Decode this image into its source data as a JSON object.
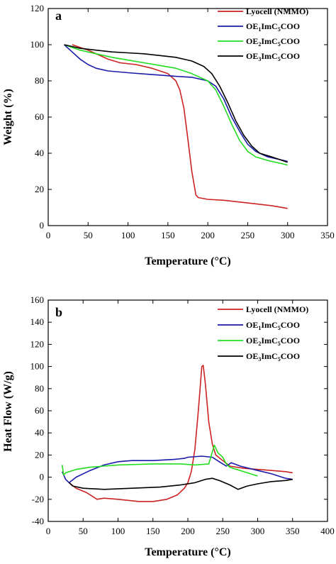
{
  "colors": {
    "lyocell": "#cc2222",
    "oe1": "#1a1aaa",
    "oe2": "#22dd22",
    "oe3": "#000000"
  },
  "chart_data": [
    {
      "type": "line",
      "panel_label": "a",
      "xlabel": "Temperature (°C)",
      "ylabel": "Weight (%)",
      "xlim": [
        0,
        350
      ],
      "ylim": [
        0,
        120
      ],
      "xticks": [
        0,
        50,
        100,
        150,
        200,
        250,
        300,
        350
      ],
      "yticks": [
        0,
        20,
        40,
        60,
        80,
        100,
        120
      ],
      "legend_position": "top-right",
      "series": [
        {
          "name": "Lyocell (NMMO)",
          "color_key": "lyocell",
          "points": [
            [
              30,
              100
            ],
            [
              50,
              97
            ],
            [
              75,
              92
            ],
            [
              90,
              90
            ],
            [
              110,
              89
            ],
            [
              130,
              87
            ],
            [
              150,
              84
            ],
            [
              160,
              80
            ],
            [
              165,
              75
            ],
            [
              170,
              65
            ],
            [
              175,
              48
            ],
            [
              180,
              30
            ],
            [
              185,
              17
            ],
            [
              188,
              15.5
            ],
            [
              200,
              14.5
            ],
            [
              220,
              14
            ],
            [
              250,
              12.5
            ],
            [
              280,
              11
            ],
            [
              300,
              9.5
            ]
          ]
        },
        {
          "name": "OE1ImC5COO",
          "sub": "1",
          "color_key": "oe1",
          "points": [
            [
              20,
              100
            ],
            [
              30,
              96
            ],
            [
              40,
              92
            ],
            [
              50,
              89
            ],
            [
              60,
              87
            ],
            [
              75,
              85.5
            ],
            [
              100,
              84.5
            ],
            [
              130,
              83.5
            ],
            [
              160,
              82.5
            ],
            [
              180,
              82
            ],
            [
              200,
              80
            ],
            [
              210,
              77
            ],
            [
              220,
              70
            ],
            [
              230,
              60
            ],
            [
              240,
              52
            ],
            [
              250,
              45
            ],
            [
              260,
              41
            ],
            [
              275,
              38
            ],
            [
              290,
              36.5
            ],
            [
              300,
              35.5
            ]
          ]
        },
        {
          "name": "OE2ImC5COO",
          "sub": "2",
          "color_key": "oe2",
          "points": [
            [
              20,
              100
            ],
            [
              40,
              97
            ],
            [
              60,
              95
            ],
            [
              80,
              93
            ],
            [
              100,
              91.5
            ],
            [
              120,
              90
            ],
            [
              140,
              88.5
            ],
            [
              160,
              87
            ],
            [
              180,
              84
            ],
            [
              200,
              80
            ],
            [
              210,
              75
            ],
            [
              220,
              66
            ],
            [
              230,
              56
            ],
            [
              240,
              47
            ],
            [
              250,
              41
            ],
            [
              260,
              38
            ],
            [
              275,
              36
            ],
            [
              290,
              34.5
            ],
            [
              300,
              33.5
            ]
          ]
        },
        {
          "name": "OE3ImC5COO",
          "sub": "3",
          "color_key": "oe3",
          "points": [
            [
              20,
              100
            ],
            [
              40,
              98
            ],
            [
              60,
              97
            ],
            [
              80,
              96
            ],
            [
              100,
              95.5
            ],
            [
              120,
              95
            ],
            [
              140,
              94
            ],
            [
              160,
              93
            ],
            [
              180,
              91
            ],
            [
              195,
              88
            ],
            [
              205,
              84
            ],
            [
              215,
              77
            ],
            [
              225,
              68
            ],
            [
              235,
              58
            ],
            [
              245,
              50
            ],
            [
              255,
              44
            ],
            [
              265,
              40
            ],
            [
              280,
              38
            ],
            [
              290,
              36.5
            ],
            [
              300,
              35
            ]
          ]
        }
      ]
    },
    {
      "type": "line",
      "panel_label": "b",
      "xlabel": "Temperature (°C)",
      "ylabel": "Heat Flow (W/g)",
      "xlim": [
        0,
        400
      ],
      "ylim": [
        -40,
        160
      ],
      "xticks": [
        0,
        50,
        100,
        150,
        200,
        250,
        300,
        350,
        400
      ],
      "yticks": [
        -40,
        -20,
        0,
        20,
        40,
        60,
        80,
        100,
        120,
        140,
        160
      ],
      "legend_position": "top-right",
      "series": [
        {
          "name": "Lyocell (NMMO)",
          "color_key": "lyocell",
          "points": [
            [
              30,
              -5
            ],
            [
              40,
              -10
            ],
            [
              55,
              -14
            ],
            [
              70,
              -20
            ],
            [
              80,
              -19
            ],
            [
              100,
              -20
            ],
            [
              130,
              -22
            ],
            [
              150,
              -22
            ],
            [
              170,
              -20
            ],
            [
              185,
              -16
            ],
            [
              195,
              -10
            ],
            [
              200,
              -5
            ],
            [
              205,
              5
            ],
            [
              210,
              25
            ],
            [
              215,
              60
            ],
            [
              220,
              100
            ],
            [
              222,
              101
            ],
            [
              225,
              85
            ],
            [
              230,
              50
            ],
            [
              235,
              30
            ],
            [
              240,
              20
            ],
            [
              250,
              15
            ],
            [
              260,
              10
            ],
            [
              280,
              8
            ],
            [
              300,
              7
            ],
            [
              320,
              6
            ],
            [
              340,
              5
            ],
            [
              350,
              4
            ]
          ]
        },
        {
          "name": "OE1ImC5COO",
          "sub": "1",
          "color_key": "oe1",
          "points": [
            [
              20,
              5
            ],
            [
              25,
              -2
            ],
            [
              30,
              -5
            ],
            [
              40,
              0
            ],
            [
              60,
              6
            ],
            [
              80,
              11
            ],
            [
              100,
              14
            ],
            [
              120,
              15
            ],
            [
              150,
              15
            ],
            [
              180,
              16
            ],
            [
              195,
              17
            ],
            [
              200,
              18
            ],
            [
              220,
              19
            ],
            [
              235,
              18
            ],
            [
              245,
              14
            ],
            [
              255,
              10
            ],
            [
              262,
              13
            ],
            [
              275,
              10
            ],
            [
              300,
              6
            ],
            [
              320,
              3
            ],
            [
              340,
              -1
            ],
            [
              350,
              -2
            ]
          ]
        },
        {
          "name": "OE2ImC5COO",
          "sub": "2",
          "color_key": "oe2",
          "points": [
            [
              20,
              11
            ],
            [
              22,
              2
            ],
            [
              25,
              4
            ],
            [
              40,
              7
            ],
            [
              60,
              9
            ],
            [
              80,
              10
            ],
            [
              100,
              11
            ],
            [
              150,
              12
            ],
            [
              190,
              12
            ],
            [
              210,
              11
            ],
            [
              230,
              12
            ],
            [
              238,
              29
            ],
            [
              243,
              22
            ],
            [
              250,
              18
            ],
            [
              255,
              12
            ],
            [
              260,
              9
            ],
            [
              270,
              7
            ],
            [
              285,
              4
            ],
            [
              300,
              1
            ]
          ]
        },
        {
          "name": "OE3ImC5COO",
          "sub": "3",
          "color_key": "oe3",
          "points": [
            [
              30,
              -5
            ],
            [
              35,
              -8
            ],
            [
              50,
              -10
            ],
            [
              80,
              -11
            ],
            [
              120,
              -10
            ],
            [
              160,
              -9
            ],
            [
              190,
              -7
            ],
            [
              210,
              -5
            ],
            [
              225,
              -2
            ],
            [
              235,
              -1
            ],
            [
              245,
              -3
            ],
            [
              260,
              -7
            ],
            [
              272,
              -11
            ],
            [
              285,
              -8
            ],
            [
              300,
              -6
            ],
            [
              320,
              -4
            ],
            [
              340,
              -3
            ],
            [
              350,
              -2
            ]
          ]
        }
      ]
    }
  ]
}
